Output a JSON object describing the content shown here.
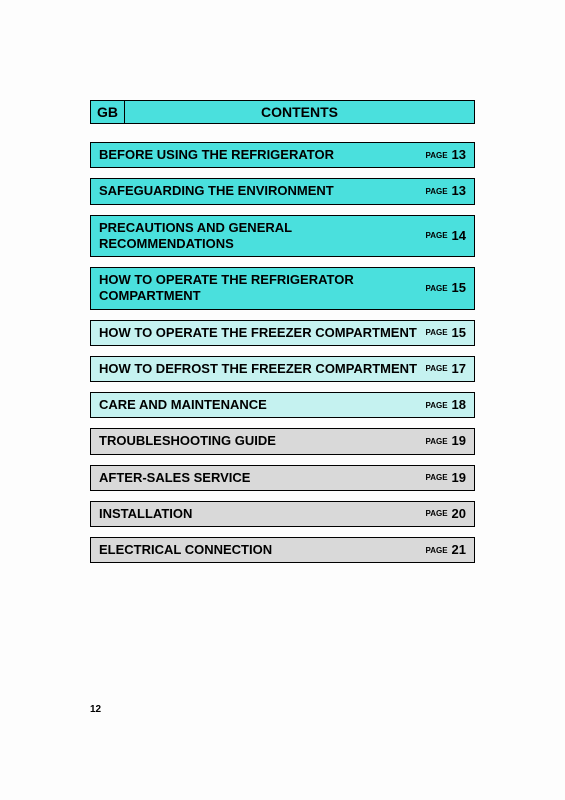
{
  "colors": {
    "cyan": "#4ae0dd",
    "light": "#c5f2f0",
    "grey": "#d9d9d9",
    "border": "#000000",
    "background": "#fdfdfd",
    "text": "#000000"
  },
  "typography": {
    "family": "Arial",
    "title_fontsize": 14,
    "row_fontsize": 13,
    "page_word_fontsize": 8,
    "page_number_fontsize": 10
  },
  "header": {
    "language": "GB",
    "title": "CONTENTS"
  },
  "page_label": "PAGE",
  "current_page": "12",
  "toc": [
    {
      "title": "BEFORE USING THE REFRIGERATOR",
      "page": "13",
      "style": "cyan"
    },
    {
      "title": "SAFEGUARDING THE ENVIRONMENT",
      "page": "13",
      "style": "cyan"
    },
    {
      "title": "PRECAUTIONS AND GENERAL RECOMMENDATIONS",
      "page": "14",
      "style": "cyan"
    },
    {
      "title": "HOW TO OPERATE THE REFRIGERATOR COMPARTMENT",
      "page": "15",
      "style": "cyan"
    },
    {
      "title": "HOW TO OPERATE THE FREEZER COMPARTMENT",
      "page": "15",
      "style": "light"
    },
    {
      "title": "HOW TO DEFROST THE FREEZER COMPARTMENT",
      "page": "17",
      "style": "light"
    },
    {
      "title": "CARE AND MAINTENANCE",
      "page": "18",
      "style": "light"
    },
    {
      "title": "TROUBLESHOOTING GUIDE",
      "page": "19",
      "style": "grey"
    },
    {
      "title": "AFTER-SALES SERVICE",
      "page": "19",
      "style": "grey"
    },
    {
      "title": "INSTALLATION",
      "page": "20",
      "style": "grey"
    },
    {
      "title": "ELECTRICAL CONNECTION",
      "page": "21",
      "style": "grey"
    }
  ]
}
